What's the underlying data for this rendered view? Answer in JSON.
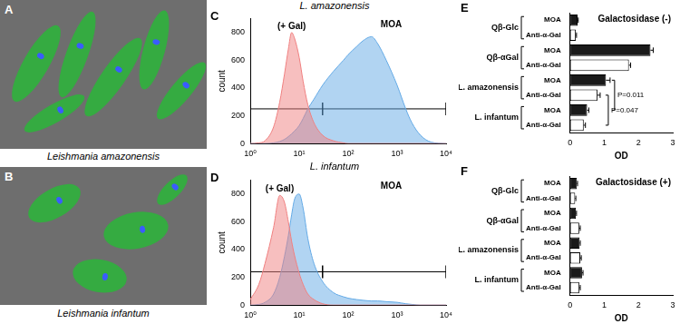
{
  "images": [
    {
      "panel": "A",
      "caption": "Leishmania amazonensis"
    },
    {
      "panel": "B",
      "caption": "Leishmania infantum"
    }
  ],
  "chart_data": [
    {
      "panel": "C",
      "type": "line",
      "title": "L. amazonensis",
      "y_label": "count",
      "log": "x",
      "grid": false,
      "xlim": [
        1,
        10000
      ],
      "xticks": [
        {
          "value": 1,
          "label": "10⁰"
        },
        {
          "value": 10,
          "label": "10¹"
        },
        {
          "value": 100,
          "label": "10²"
        },
        {
          "value": 1000,
          "label": "10³"
        },
        {
          "value": 10000,
          "label": "10⁴"
        }
      ],
      "ylim": [
        0,
        900
      ],
      "yticks": [
        0,
        200,
        400,
        600,
        800
      ],
      "x": [
        1,
        1.5,
        2,
        3,
        4,
        5,
        6,
        7,
        8,
        10,
        12,
        15,
        20,
        30,
        50,
        80,
        100,
        150,
        200,
        300,
        400,
        600,
        1000,
        1500,
        2000,
        3000,
        5000,
        10000
      ],
      "series": [
        {
          "name": "(+ Gal)",
          "color": "#f08080",
          "values": [
            0,
            5,
            20,
            120,
            300,
            500,
            680,
            800,
            760,
            620,
            450,
            280,
            150,
            60,
            20,
            5,
            0,
            0,
            0,
            0,
            0,
            0,
            0,
            0,
            0,
            0,
            0,
            0
          ]
        },
        {
          "name": "MOA",
          "color": "#64aae6",
          "values": [
            0,
            0,
            0,
            5,
            15,
            30,
            50,
            70,
            90,
            130,
            180,
            250,
            320,
            420,
            520,
            600,
            640,
            700,
            740,
            770,
            720,
            600,
            420,
            250,
            150,
            60,
            10,
            0
          ]
        }
      ],
      "gate": {
        "x": [
          1,
          30,
          10000
        ],
        "y": 250
      }
    },
    {
      "panel": "D",
      "type": "line",
      "title": "L. infantum",
      "y_label": "count",
      "log": "x",
      "grid": false,
      "xlim": [
        1,
        10000
      ],
      "xticks": [
        {
          "value": 1,
          "label": "10⁰"
        },
        {
          "value": 10,
          "label": "10¹"
        },
        {
          "value": 100,
          "label": "10²"
        },
        {
          "value": 1000,
          "label": "10³"
        },
        {
          "value": 10000,
          "label": "10⁴"
        }
      ],
      "ylim": [
        0,
        900
      ],
      "yticks": [
        0,
        200,
        400,
        600,
        800
      ],
      "x": [
        1,
        1.5,
        2,
        3,
        4,
        5,
        6,
        7,
        8,
        10,
        12,
        15,
        20,
        30,
        50,
        80,
        100,
        150,
        200,
        300,
        400,
        600,
        1000,
        1500,
        2000,
        3000,
        5000,
        10000
      ],
      "series": [
        {
          "name": "(+ Gal)",
          "color": "#f08080",
          "values": [
            40,
            150,
            300,
            560,
            790,
            740,
            600,
            460,
            360,
            230,
            150,
            80,
            40,
            10,
            0,
            0,
            0,
            0,
            0,
            0,
            0,
            0,
            0,
            0,
            0,
            0,
            0,
            0
          ]
        },
        {
          "name": "MOA",
          "color": "#64aae6",
          "values": [
            0,
            5,
            20,
            80,
            200,
            350,
            500,
            650,
            760,
            800,
            700,
            480,
            300,
            170,
            90,
            60,
            50,
            40,
            35,
            30,
            30,
            25,
            20,
            10,
            5,
            0,
            0,
            0
          ]
        }
      ],
      "gate": {
        "x": [
          1,
          30,
          10000
        ],
        "y": 240
      }
    },
    {
      "panel": "E",
      "type": "bar",
      "orientation": "horizontal",
      "title": "Galactosidase (-)",
      "x_label": "OD",
      "grid": false,
      "categories": [
        "MOA",
        "Anti-α-Gal",
        "MOA",
        "Anti-α-Gal",
        "MOA",
        "Anti-α-Gal",
        "MOA",
        "Anti-α-Gal"
      ],
      "groups": [
        {
          "label": "Qβ-Glc",
          "size": 2
        },
        {
          "label": "Qβ-αGal",
          "size": 2
        },
        {
          "label": "L. amazonensis",
          "size": 2
        },
        {
          "label": "L. infantum",
          "size": 2
        }
      ],
      "values": [
        0.22,
        0.17,
        2.35,
        1.72,
        1.05,
        0.8,
        0.5,
        0.4
      ],
      "errors": [
        0.02,
        0.02,
        0.08,
        0.05,
        0.12,
        0.08,
        0.05,
        0.05
      ],
      "colors": [
        "#1a1a1a",
        "#ffffff",
        "#1a1a1a",
        "#ffffff",
        "#1a1a1a",
        "#ffffff",
        "#1a1a1a",
        "#ffffff"
      ],
      "comparisons": [
        {
          "from": 4,
          "to": 6,
          "label": "P=0.011"
        },
        {
          "from": 5,
          "to": 7,
          "label": "P=0.047"
        }
      ],
      "xlim": [
        0,
        3
      ],
      "xticks": [
        0,
        1,
        2,
        3
      ]
    },
    {
      "panel": "F",
      "type": "bar",
      "orientation": "horizontal",
      "title": "Galactosidase (+)",
      "x_label": "OD",
      "grid": false,
      "categories": [
        "MOA",
        "Anti-α-Gal",
        "MOA",
        "Anti-α-Gal",
        "MOA",
        "Anti-α-Gal",
        "MOA",
        "Anti-α-Gal"
      ],
      "groups": [
        {
          "label": "Qβ-Glc",
          "size": 2
        },
        {
          "label": "Qβ-αGal",
          "size": 2
        },
        {
          "label": "L. amazonensis",
          "size": 2
        },
        {
          "label": "L. infantum",
          "size": 2
        }
      ],
      "values": [
        0.2,
        0.15,
        0.17,
        0.27,
        0.28,
        0.3,
        0.35,
        0.27
      ],
      "errors": [
        0.02,
        0.02,
        0.02,
        0.03,
        0.02,
        0.03,
        0.03,
        0.03
      ],
      "colors": [
        "#1a1a1a",
        "#ffffff",
        "#1a1a1a",
        "#ffffff",
        "#1a1a1a",
        "#ffffff",
        "#1a1a1a",
        "#ffffff"
      ],
      "xlim": [
        0,
        3
      ],
      "xticks": [
        0,
        1,
        2,
        3
      ]
    }
  ]
}
